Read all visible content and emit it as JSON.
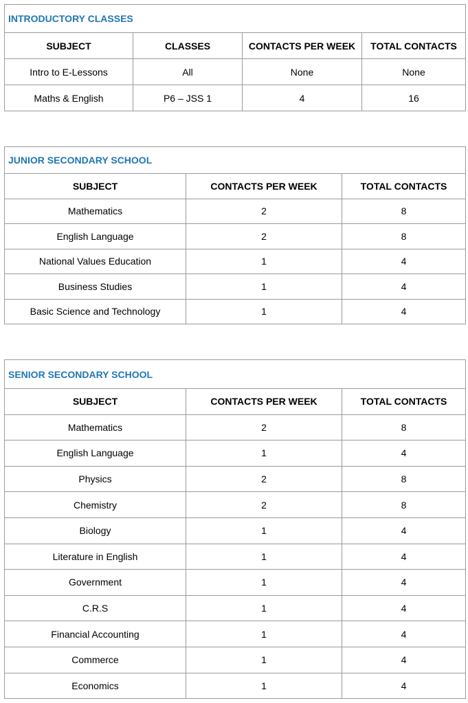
{
  "introductory": {
    "title": "INTRODUCTORY CLASSES",
    "headers": [
      "SUBJECT",
      "CLASSES",
      "CONTACTS PER WEEK",
      "TOTAL CONTACTS"
    ],
    "rows": [
      [
        "Intro to E-Lessons",
        "All",
        "None",
        "None"
      ],
      [
        "Maths & English",
        "P6 – JSS 1",
        "4",
        "16"
      ]
    ]
  },
  "junior": {
    "title": "JUNIOR SECONDARY SCHOOL",
    "headers": [
      "SUBJECT",
      "CONTACTS PER WEEK",
      "TOTAL CONTACTS"
    ],
    "rows": [
      [
        "Mathematics",
        "2",
        "8"
      ],
      [
        "English Language",
        "2",
        "8"
      ],
      [
        "National Values Education",
        "1",
        "4"
      ],
      [
        "Business Studies",
        "1",
        "4"
      ],
      [
        "Basic Science and Technology",
        "1",
        "4"
      ]
    ]
  },
  "senior": {
    "title": "SENIOR SECONDARY SCHOOL",
    "headers": [
      "SUBJECT",
      "CONTACTS PER WEEK",
      "TOTAL CONTACTS"
    ],
    "rows": [
      [
        "Mathematics",
        "2",
        "8"
      ],
      [
        "English Language",
        "1",
        "4"
      ],
      [
        "Physics",
        "2",
        "8"
      ],
      [
        "Chemistry",
        "2",
        "8"
      ],
      [
        "Biology",
        "1",
        "4"
      ],
      [
        "Literature in English",
        "1",
        "4"
      ],
      [
        "Government",
        "1",
        "4"
      ],
      [
        "C.R.S",
        "1",
        "4"
      ],
      [
        "Financial Accounting",
        "1",
        "4"
      ],
      [
        "Commerce",
        "1",
        "4"
      ],
      [
        "Economics",
        "1",
        "4"
      ]
    ]
  },
  "colors": {
    "title": "#1f77b4",
    "border": "#9a9a9a"
  }
}
